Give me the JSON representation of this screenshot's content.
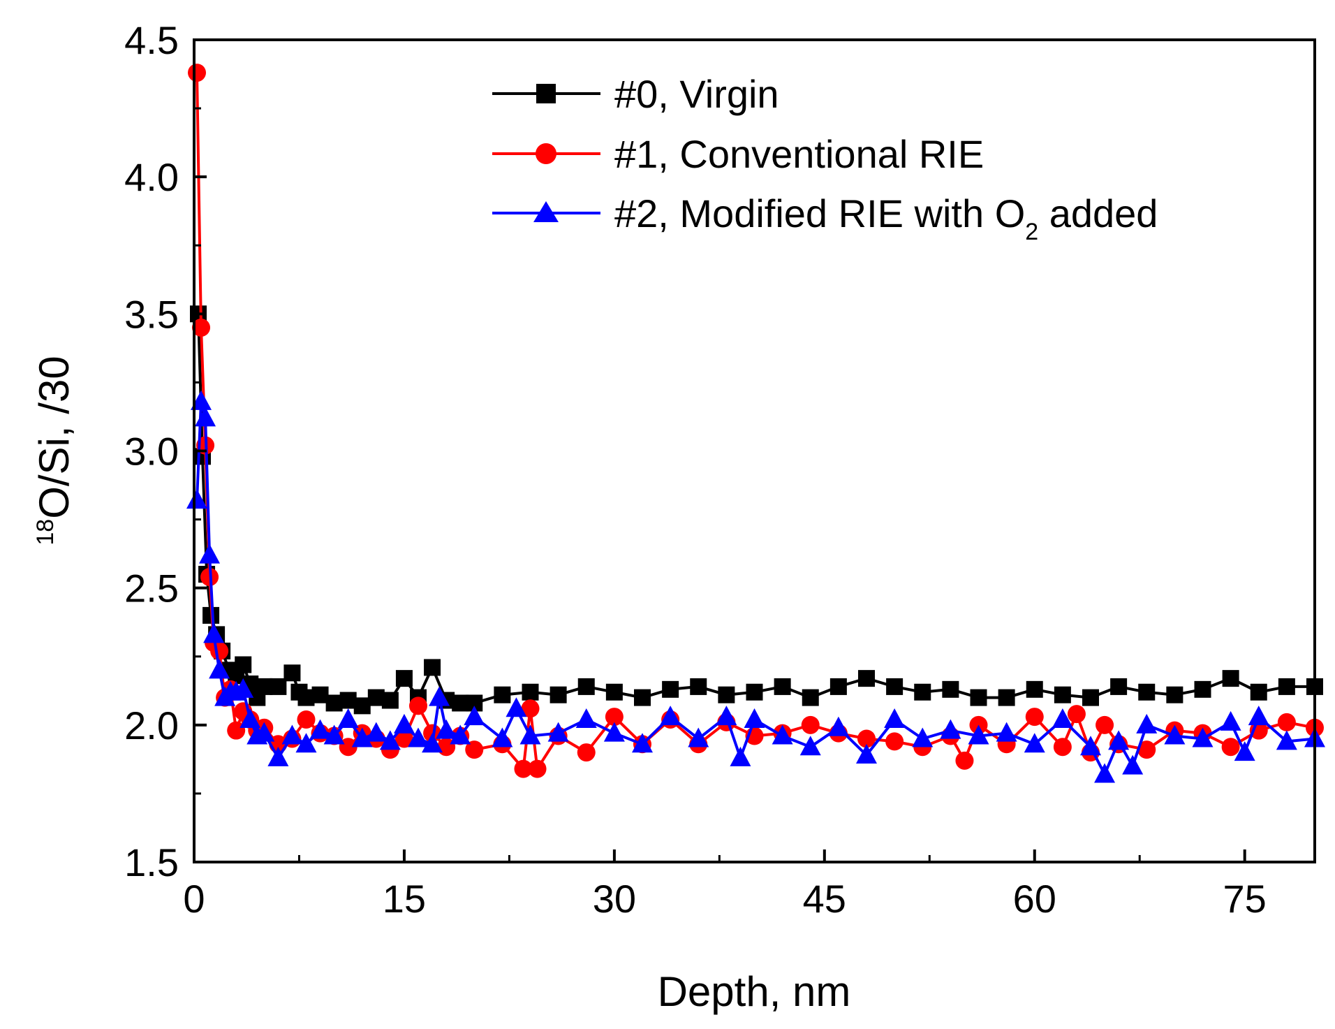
{
  "chart_data": {
    "type": "line",
    "xlabel": "Depth, nm",
    "ylabel": "O/Si, /30",
    "ylabel_superscript": "18",
    "xlim": [
      0,
      80
    ],
    "ylim": [
      1.5,
      4.5
    ],
    "xticks": [
      0,
      15,
      30,
      45,
      60,
      75
    ],
    "xtick_labels": [
      "0",
      "15",
      "30",
      "45",
      "60",
      "75"
    ],
    "yticks": [
      1.5,
      2.0,
      2.5,
      3.0,
      3.5,
      4.0,
      4.5
    ],
    "ytick_labels": [
      "1.5",
      "2.0",
      "2.5",
      "3.0",
      "3.5",
      "4.0",
      "4.5"
    ],
    "legend_position": "top-right",
    "series": [
      {
        "name": "#0, Virgin",
        "color": "#000000",
        "marker": "square",
        "x": [
          0.3,
          0.6,
          0.9,
          1.2,
          1.6,
          2.0,
          2.5,
          3.0,
          3.5,
          4.0,
          4.5,
          5.0,
          6.0,
          7.0,
          7.5,
          8.0,
          9.0,
          10.0,
          11.0,
          12.0,
          13.0,
          14.0,
          15.0,
          16.0,
          17.0,
          18.0,
          19.0,
          20.0,
          22.0,
          24.0,
          26.0,
          28.0,
          30.0,
          32.0,
          34.0,
          36.0,
          38.0,
          40.0,
          42.0,
          44.0,
          46.0,
          48.0,
          50.0,
          52.0,
          54.0,
          56.0,
          58.0,
          60.0,
          62.0,
          64.0,
          66.0,
          68.0,
          70.0,
          72.0,
          74.0,
          76.0,
          78.0,
          80.0
        ],
        "y": [
          3.5,
          2.98,
          2.55,
          2.4,
          2.33,
          2.27,
          2.2,
          2.18,
          2.22,
          2.15,
          2.1,
          2.14,
          2.14,
          2.19,
          2.12,
          2.1,
          2.11,
          2.08,
          2.09,
          2.07,
          2.1,
          2.09,
          2.17,
          2.1,
          2.21,
          2.09,
          2.08,
          2.08,
          2.11,
          2.12,
          2.11,
          2.14,
          2.12,
          2.1,
          2.13,
          2.14,
          2.11,
          2.12,
          2.14,
          2.1,
          2.14,
          2.17,
          2.14,
          2.12,
          2.13,
          2.1,
          2.1,
          2.13,
          2.11,
          2.1,
          2.14,
          2.12,
          2.11,
          2.13,
          2.17,
          2.12,
          2.14,
          2.14
        ]
      },
      {
        "name": "#1, Conventional RIE",
        "color": "#ff0000",
        "marker": "circle",
        "x": [
          0.2,
          0.5,
          0.8,
          1.1,
          1.4,
          1.8,
          2.2,
          2.6,
          3.0,
          3.5,
          4.0,
          4.5,
          5.0,
          6.0,
          7.0,
          8.0,
          9.0,
          10.0,
          11.0,
          12.0,
          13.0,
          14.0,
          15.0,
          16.0,
          17.0,
          18.0,
          19.0,
          20.0,
          22.0,
          23.5,
          24.0,
          24.5,
          26.0,
          28.0,
          30.0,
          32.0,
          34.0,
          36.0,
          38.0,
          40.0,
          42.0,
          44.0,
          46.0,
          48.0,
          50.0,
          52.0,
          54.0,
          55.0,
          56.0,
          58.0,
          60.0,
          62.0,
          63.0,
          64.0,
          65.0,
          66.0,
          68.0,
          70.0,
          72.0,
          74.0,
          76.0,
          78.0,
          80.0
        ],
        "y": [
          4.38,
          3.45,
          3.02,
          2.54,
          2.3,
          2.27,
          2.1,
          2.13,
          1.98,
          2.05,
          2.02,
          1.98,
          1.99,
          1.93,
          1.95,
          2.02,
          1.97,
          1.96,
          1.92,
          1.97,
          1.95,
          1.91,
          1.95,
          2.07,
          1.97,
          1.92,
          1.96,
          1.91,
          1.93,
          1.84,
          2.06,
          1.84,
          1.96,
          1.9,
          2.03,
          1.93,
          2.02,
          1.93,
          2.01,
          1.96,
          1.97,
          2.0,
          1.97,
          1.95,
          1.94,
          1.92,
          1.96,
          1.87,
          2.0,
          1.93,
          2.03,
          1.92,
          2.04,
          1.9,
          2.0,
          1.93,
          1.91,
          1.98,
          1.97,
          1.92,
          1.98,
          2.01,
          1.99
        ]
      },
      {
        "name": "#2, Modified RIE with O",
        "name_subscript": "2",
        "name_suffix": " added",
        "color": "#0000ff",
        "marker": "triangle",
        "x": [
          0.2,
          0.5,
          0.8,
          1.1,
          1.4,
          1.8,
          2.2,
          2.6,
          3.0,
          3.5,
          4.0,
          4.5,
          5.0,
          6.0,
          7.0,
          8.0,
          9.0,
          10.0,
          11.0,
          12.0,
          13.0,
          14.0,
          15.0,
          16.0,
          17.0,
          17.5,
          18.0,
          19.0,
          20.0,
          22.0,
          23.0,
          24.0,
          26.0,
          28.0,
          30.0,
          32.0,
          34.0,
          36.0,
          38.0,
          39.0,
          40.0,
          42.0,
          44.0,
          46.0,
          48.0,
          50.0,
          52.0,
          54.0,
          56.0,
          58.0,
          60.0,
          62.0,
          64.0,
          65.0,
          66.0,
          67.0,
          68.0,
          70.0,
          72.0,
          74.0,
          75.0,
          76.0,
          78.0,
          80.0
        ],
        "y": [
          2.82,
          3.18,
          3.12,
          2.62,
          2.33,
          2.2,
          2.1,
          2.12,
          2.12,
          2.13,
          2.02,
          1.96,
          1.97,
          1.88,
          1.96,
          1.93,
          1.98,
          1.96,
          2.02,
          1.95,
          1.97,
          1.94,
          2.0,
          1.95,
          1.93,
          2.1,
          1.98,
          1.96,
          2.03,
          1.95,
          2.06,
          1.96,
          1.97,
          2.02,
          1.97,
          1.93,
          2.03,
          1.95,
          2.03,
          1.88,
          2.02,
          1.96,
          1.92,
          1.99,
          1.89,
          2.02,
          1.95,
          1.98,
          1.96,
          1.97,
          1.93,
          2.02,
          1.92,
          1.82,
          1.94,
          1.85,
          2.0,
          1.96,
          1.95,
          2.01,
          1.9,
          2.03,
          1.94,
          1.95
        ]
      }
    ]
  }
}
